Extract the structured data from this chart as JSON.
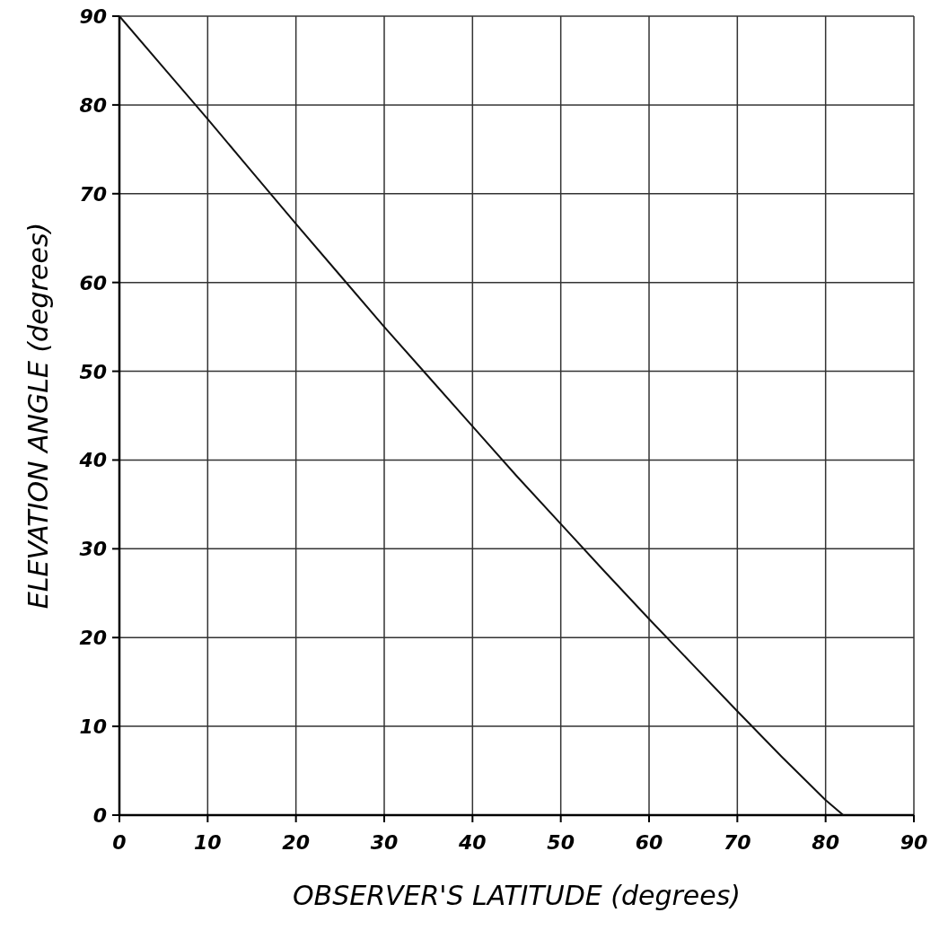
{
  "chart_data": {
    "type": "line",
    "xlabel": "OBSERVER'S LATITUDE (degrees)",
    "ylabel": "ELEVATION ANGLE (degrees)",
    "x": [
      0,
      5,
      10,
      15,
      20,
      25,
      30,
      35,
      40,
      45,
      50,
      55,
      60,
      65,
      70,
      75,
      80,
      82
    ],
    "series": [
      {
        "color": "#111111",
        "values": [
          90,
          84.2,
          78.4,
          72.5,
          66.6,
          60.8,
          55,
          49.4,
          43.8,
          38.2,
          32.8,
          27.4,
          22.1,
          16.9,
          11.7,
          6.6,
          1.7,
          0
        ]
      }
    ],
    "xlim": [
      0,
      90
    ],
    "ylim": [
      0,
      90
    ],
    "xticks": [
      0,
      10,
      20,
      30,
      40,
      50,
      60,
      70,
      80,
      90
    ],
    "yticks": [
      0,
      10,
      20,
      30,
      40,
      50,
      60,
      70,
      80,
      90
    ],
    "grid": true,
    "marker": "none",
    "line_style": "solid"
  }
}
